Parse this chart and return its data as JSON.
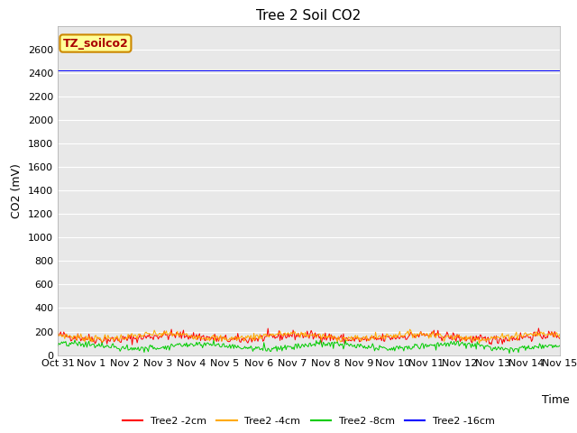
{
  "title": "Tree 2 Soil CO2",
  "ylabel": "CO2 (mV)",
  "xlabel": "Time",
  "xlim_days": [
    0,
    15
  ],
  "ylim": [
    0,
    2800
  ],
  "yticks": [
    0,
    200,
    400,
    600,
    800,
    1000,
    1200,
    1400,
    1600,
    1800,
    2000,
    2200,
    2400,
    2600
  ],
  "xtick_labels": [
    "Oct 31",
    "Nov 1",
    "Nov 2",
    "Nov 3",
    "Nov 4",
    "Nov 5",
    "Nov 6",
    "Nov 7",
    "Nov 8",
    "Nov 9",
    "Nov 10",
    "Nov 11",
    "Nov 12",
    "Nov 13",
    "Nov 14",
    "Nov 15"
  ],
  "xtick_positions": [
    0,
    1,
    2,
    3,
    4,
    5,
    6,
    7,
    8,
    9,
    10,
    11,
    12,
    13,
    14,
    15
  ],
  "plot_bg_color": "#e8e8e8",
  "fig_bg_color": "#ffffff",
  "series_order": [
    "Tree2 -2cm",
    "Tree2 -4cm",
    "Tree2 -8cm",
    "Tree2 -16cm"
  ],
  "series": {
    "Tree2 -2cm": {
      "color": "#ff0000",
      "mean": 150,
      "noise": 20,
      "seed": 42
    },
    "Tree2 -4cm": {
      "color": "#ffaa00",
      "mean": 160,
      "noise": 15,
      "seed": 7
    },
    "Tree2 -8cm": {
      "color": "#00cc00",
      "mean": 75,
      "noise": 15,
      "seed": 13
    },
    "Tree2 -16cm": {
      "color": "#0000ff",
      "mean": 2420,
      "noise": 0,
      "seed": 99
    }
  },
  "n_points": 500,
  "annotation_text": "TZ_soilco2",
  "annotation_bg": "#ffff99",
  "annotation_border": "#cc8800",
  "annotation_text_color": "#aa0000",
  "legend_colors": [
    "#ff0000",
    "#ffaa00",
    "#00cc00",
    "#0000ff"
  ],
  "legend_labels": [
    "Tree2 -2cm",
    "Tree2 -4cm",
    "Tree2 -8cm",
    "Tree2 -16cm"
  ],
  "tick_fontsize": 8,
  "title_fontsize": 11,
  "label_fontsize": 9
}
